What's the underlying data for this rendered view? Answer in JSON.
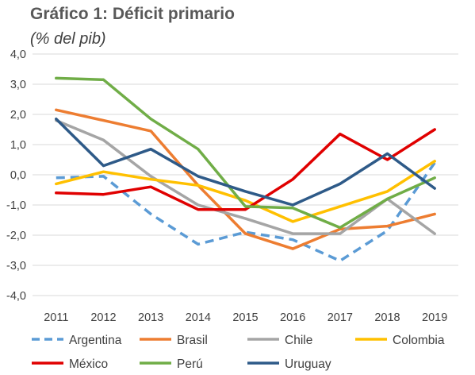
{
  "title": "Gráfico 1: Déficit primario",
  "subtitle": "(% del pib)",
  "chart_data": {
    "type": "line",
    "title": "Gráfico 1: Déficit primario",
    "subtitle": "(% del pib)",
    "xlabel": "",
    "ylabel": "",
    "x": [
      "2011",
      "2012",
      "2013",
      "2014",
      "2015",
      "2016",
      "2017",
      "2018",
      "2019"
    ],
    "ylim": [
      -4,
      4
    ],
    "yticks": [
      "4,0",
      "3,0",
      "2,0",
      "1,0",
      "0,0",
      "-1,0",
      "-2,0",
      "-3,0",
      "-4,0"
    ],
    "grid": true,
    "legend_position": "bottom",
    "series": [
      {
        "name": "Argentina",
        "color": "#5B9BD5",
        "dashed": true,
        "values": [
          -0.1,
          -0.05,
          -1.3,
          -2.3,
          -1.9,
          -2.15,
          -2.85,
          -1.85,
          0.4
        ]
      },
      {
        "name": "Brasil",
        "color": "#ED7D31",
        "dashed": false,
        "values": [
          2.15,
          1.8,
          1.45,
          -0.35,
          -1.95,
          -2.45,
          -1.8,
          -1.7,
          -1.3
        ]
      },
      {
        "name": "Chile",
        "color": "#A5A5A5",
        "dashed": false,
        "values": [
          1.8,
          1.15,
          -0.05,
          -1.0,
          -1.45,
          -1.95,
          -1.95,
          -0.8,
          -1.95
        ]
      },
      {
        "name": "Colombia",
        "color": "#FFC000",
        "dashed": false,
        "values": [
          -0.3,
          0.1,
          -0.15,
          -0.35,
          -0.85,
          -1.55,
          -1.05,
          -0.55,
          0.45
        ]
      },
      {
        "name": "México",
        "color": "#E00000",
        "dashed": false,
        "values": [
          -0.6,
          -0.65,
          -0.4,
          -1.15,
          -1.15,
          -0.15,
          1.35,
          0.5,
          1.5
        ]
      },
      {
        "name": "Perú",
        "color": "#70AD47",
        "dashed": false,
        "values": [
          3.2,
          3.15,
          1.85,
          0.85,
          -1.05,
          -1.1,
          -1.75,
          -0.8,
          -0.1
        ]
      },
      {
        "name": "Uruguay",
        "color": "#2E5A88",
        "dashed": false,
        "values": [
          1.85,
          0.3,
          0.85,
          -0.05,
          -0.55,
          -1.0,
          -0.3,
          0.7,
          -0.45
        ]
      }
    ]
  }
}
